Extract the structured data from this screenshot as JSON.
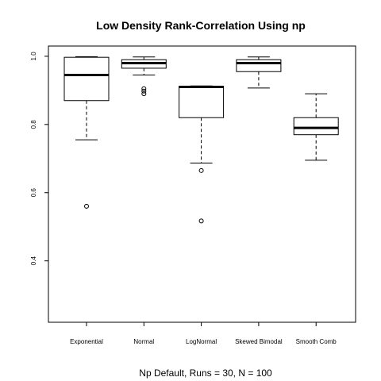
{
  "chart_data": {
    "type": "boxplot",
    "title": "Low Density Rank-Correlation Using np",
    "xlabel": "Np Default, Runs = 30, N = 100",
    "ylabel": "",
    "ylim": [
      0.22,
      1.03
    ],
    "yticks": [
      0.4,
      0.6,
      0.8,
      1.0
    ],
    "ytick_labels": [
      "0.4",
      "0.6",
      "0.8",
      "1.0"
    ],
    "grid": false,
    "categories": [
      "Exponential",
      "Normal",
      "LogNormal",
      "Skewed Bimodal",
      "Smooth Comb"
    ],
    "boxes": [
      {
        "category": "Exponential",
        "whisker_low": 0.755,
        "q1": 0.87,
        "median": 0.945,
        "q3": 0.997,
        "whisker_high": 0.999,
        "outliers": [
          0.56
        ]
      },
      {
        "category": "Normal",
        "whisker_low": 0.945,
        "q1": 0.965,
        "median": 0.98,
        "q3": 0.99,
        "whisker_high": 0.998,
        "outliers": [
          0.905,
          0.898,
          0.89
        ]
      },
      {
        "category": "LogNormal",
        "whisker_low": 0.687,
        "q1": 0.82,
        "median": 0.91,
        "q3": 0.912,
        "whisker_high": 0.913,
        "outliers": [
          0.665,
          0.517
        ]
      },
      {
        "category": "Skewed Bimodal",
        "whisker_low": 0.907,
        "q1": 0.955,
        "median": 0.98,
        "q3": 0.99,
        "whisker_high": 0.998,
        "outliers": []
      },
      {
        "category": "Smooth Comb",
        "whisker_low": 0.695,
        "q1": 0.77,
        "median": 0.79,
        "q3": 0.82,
        "whisker_high": 0.89,
        "outliers": []
      }
    ]
  }
}
